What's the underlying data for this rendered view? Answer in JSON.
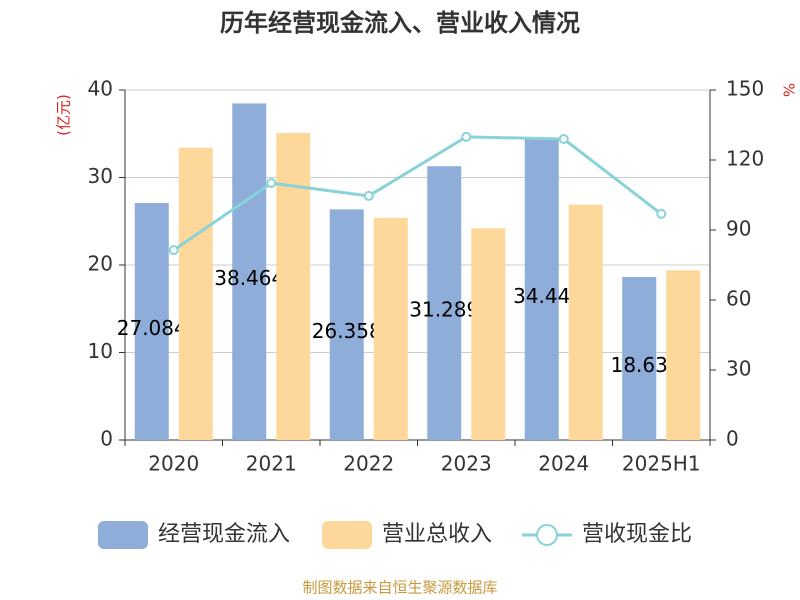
{
  "chart_data": {
    "type": "bar-line",
    "title": "历年经营现金流入、营业收入情况",
    "y_label": "(亿元)",
    "y2_label": "%",
    "categories": [
      "2020",
      "2021",
      "2022",
      "2023",
      "2024",
      "2025H1"
    ],
    "series": [
      {
        "name": "经营现金流入",
        "color": "#8eadd9",
        "values": [
          27.084,
          38.464,
          26.358,
          31.289,
          34.44,
          18.63
        ]
      },
      {
        "name": "营业总收入",
        "color": "#fdd89a",
        "values": [
          33.4,
          35.1,
          25.4,
          24.2,
          26.9,
          19.4
        ]
      },
      {
        "name": "营收现金比",
        "color": "#88d3d8",
        "axis": "y2",
        "values": [
          81.4,
          110.1,
          104.6,
          129.9,
          129.0,
          96.9
        ]
      }
    ],
    "ylim": [
      0,
      40
    ],
    "yticks": [
      0,
      10,
      20,
      30,
      40
    ],
    "y2lim": [
      0,
      150
    ],
    "y2ticks": [
      0,
      30,
      60,
      90,
      120,
      150
    ],
    "grid": true,
    "source": "制图数据来自恒生聚源数据库"
  }
}
